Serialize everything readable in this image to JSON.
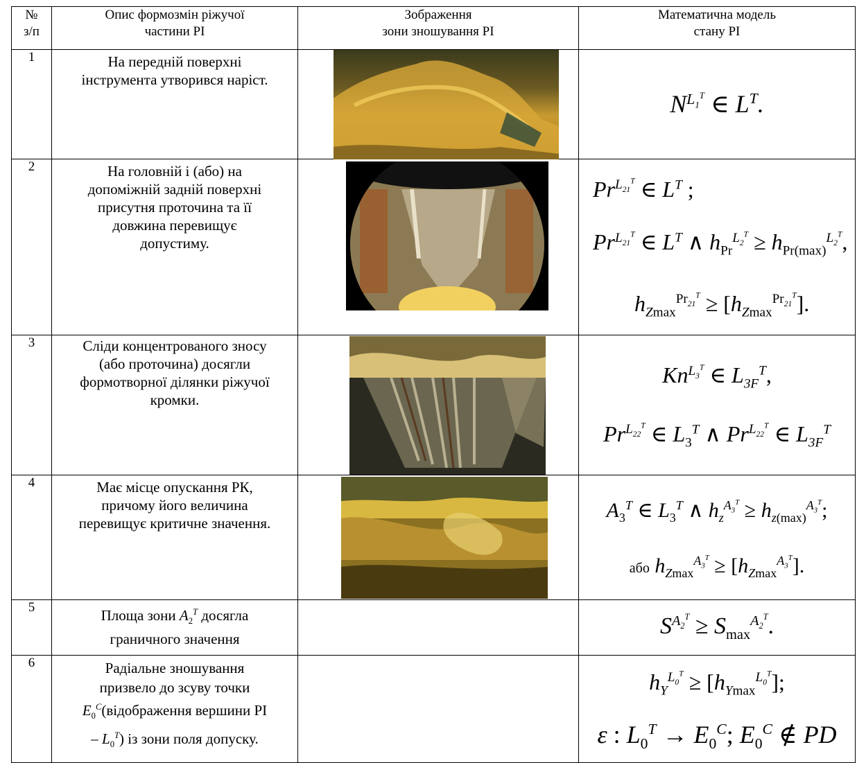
{
  "headers": {
    "num_line1": "№",
    "num_line2": "з/п",
    "desc_line1": "Опис формозмін ріжучої",
    "desc_line2": "частини РІ",
    "img_line1": "Зображення",
    "img_line2": "зони зношування РІ",
    "model_line1": "Математична модель",
    "model_line2": "стану РІ"
  },
  "rows": [
    {
      "num": "1",
      "desc_line1": "На передній поверхні",
      "desc_line2": "інструмента утворився наріст."
    },
    {
      "num": "2",
      "desc_line1": "На головній і (або) на",
      "desc_line2": "допоміжній задній поверхні",
      "desc_line3": "присутня проточина та її",
      "desc_line4": "довжина перевищує",
      "desc_line5": "допустиму."
    },
    {
      "num": "3",
      "desc_line1": "Сліди концентрованого зносу",
      "desc_line2": "(або проточина) досягли",
      "desc_line3": "формотворної ділянки ріжучої",
      "desc_line4": "кромки."
    },
    {
      "num": "4",
      "desc_line1": "Має місце опускання РК,",
      "desc_line2": "причому його величина",
      "desc_line3": "перевищує критичне значення."
    },
    {
      "num": "5",
      "desc_line1": "Площа зони",
      "desc_line2": "досягла",
      "desc_line3": "граничного значення"
    },
    {
      "num": "6",
      "desc_line1": "Радіальне зношування",
      "desc_line2": "призвело до зсуву точки",
      "desc_line3": "(відображення вершини РІ",
      "desc_line4": "–",
      "desc_line5": ") із зони поля допуску."
    }
  ],
  "model_text": {
    "abo": "або"
  },
  "colors": {
    "photo_gold": "#b8902a",
    "photo_dark": "#2a241a"
  }
}
